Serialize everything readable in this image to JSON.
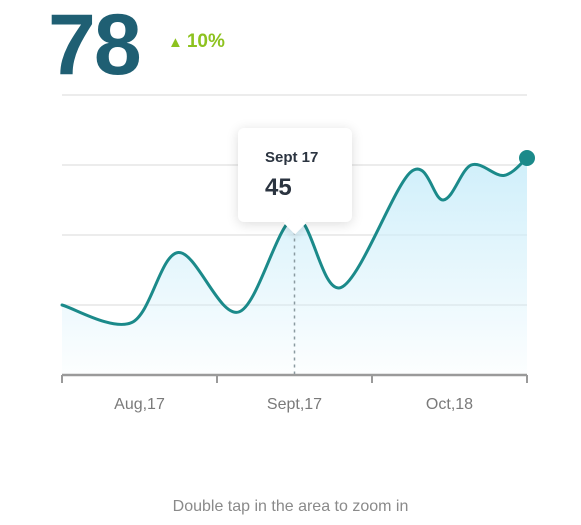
{
  "headline": {
    "value": "78",
    "change": "10%",
    "change_icon": "triangle-up-icon",
    "change_color": "#8dc21f",
    "value_color": "#1f5f73"
  },
  "tooltip": {
    "date": "Sept 17",
    "value": "45"
  },
  "hint": "Double tap in the area to zoom in",
  "chart_data": {
    "type": "area",
    "x_tick_labels": [
      "Aug,17",
      "Sept,17",
      "Oct,18"
    ],
    "x": [
      0,
      0.15,
      0.25,
      0.38,
      0.5,
      0.6,
      0.75,
      0.82,
      0.88,
      0.95,
      1.0
    ],
    "values": [
      20,
      15,
      35,
      18,
      45,
      25,
      58,
      50,
      60,
      57,
      62
    ],
    "highlighted_point": {
      "x": 0.5,
      "value": 45
    },
    "ylim": [
      0,
      80
    ],
    "grid": true,
    "line_color": "#1b8a8a",
    "fill_color": "#cdeefa",
    "axis_color": "#9a9a9a"
  }
}
